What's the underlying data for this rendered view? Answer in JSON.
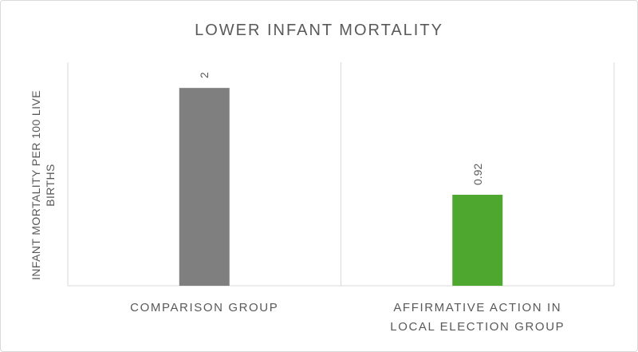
{
  "chart_data": {
    "type": "bar",
    "title": "LOWER INFANT MORTALITY",
    "ylabel": [
      "INFANT MORTALITY PER 100 LIVE",
      "BIRTHS"
    ],
    "xlabel": "",
    "categories": [
      [
        "COMPARISON GROUP"
      ],
      [
        "AFFIRMATIVE ACTION IN",
        "LOCAL ELECTION GROUP"
      ]
    ],
    "values": [
      2,
      0.92
    ],
    "data_labels": [
      "2",
      "0.92"
    ],
    "colors": [
      "#7f7f7f",
      "#4ea72e"
    ],
    "ylim": [
      0,
      2.3
    ],
    "grid": false,
    "vertical_category_dividers": true
  }
}
